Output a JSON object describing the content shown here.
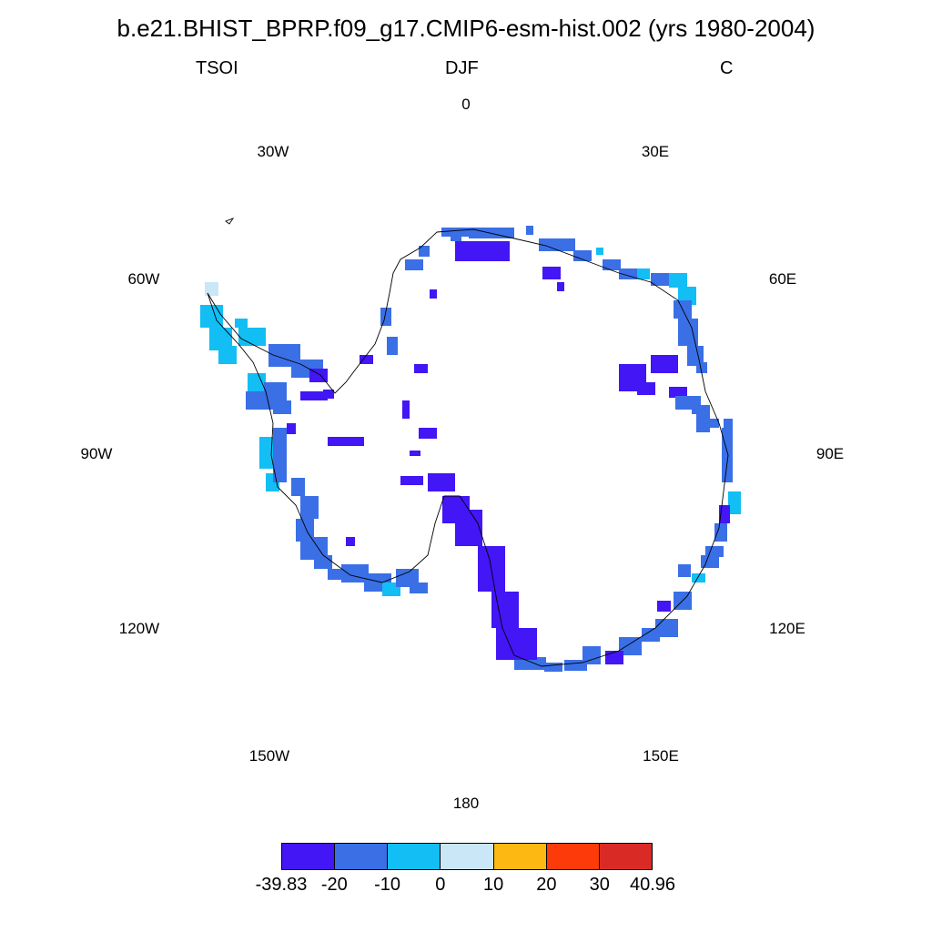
{
  "header": {
    "title": "b.e21.BHIST_BPRP.f09_g17.CMIP6-esm-hist.002 (yrs 1980-2004)",
    "left": "TSOI",
    "center": "DJF",
    "right": "C"
  },
  "longitude_labels": [
    "0",
    "30E",
    "60E",
    "90E",
    "120E",
    "150E",
    "180",
    "150W",
    "120W",
    "90W",
    "60W",
    "30W"
  ],
  "colorbar": {
    "colors": [
      "#4216f5",
      "#3a6fe6",
      "#12bef4",
      "#c9e7f6",
      "#fdb912",
      "#fd3a09",
      "#d92a26"
    ],
    "ticks": [
      "-39.83",
      "-20",
      "-10",
      "0",
      "10",
      "20",
      "30",
      "40.96"
    ]
  }
}
